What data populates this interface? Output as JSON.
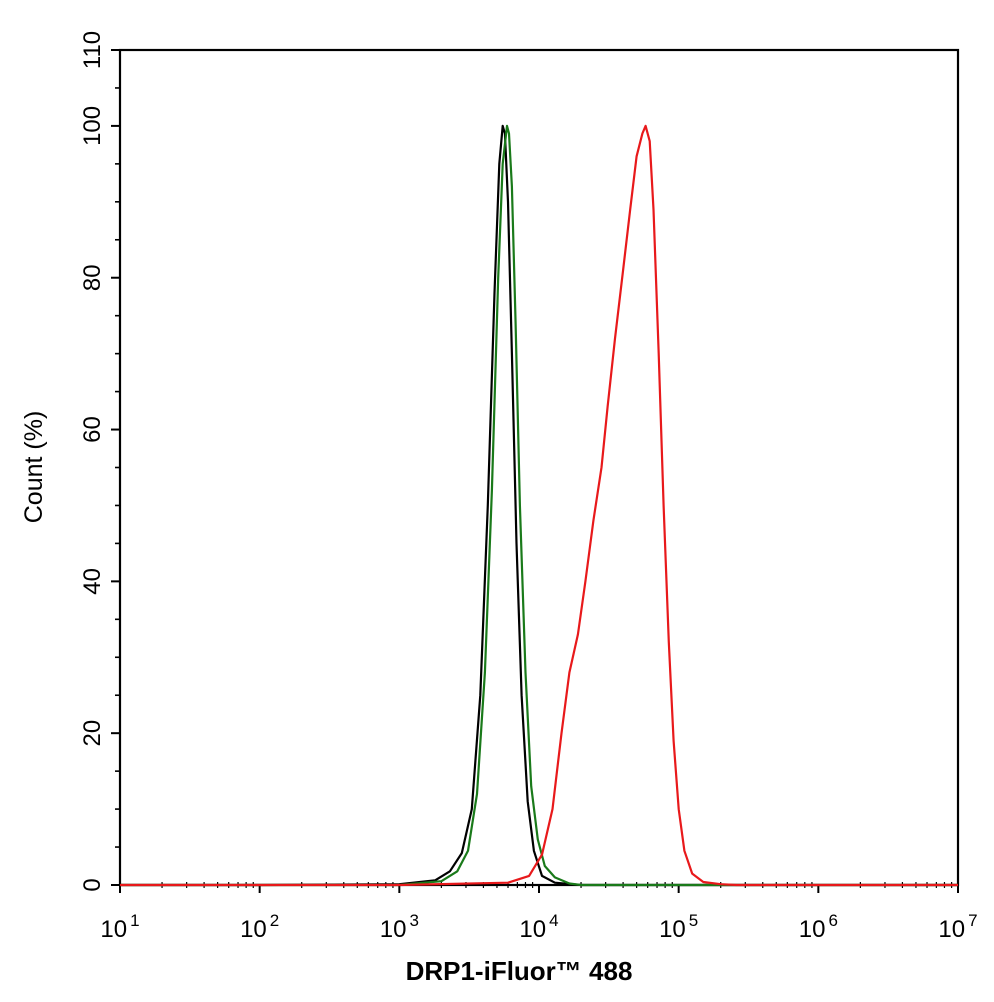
{
  "chart_data": {
    "type": "line",
    "title": "",
    "xlabel": "DRP1-iFluor™ 488",
    "ylabel": "Count  (%)",
    "x_scale": "log",
    "xlim": [
      10,
      10000000
    ],
    "ylim": [
      0,
      110
    ],
    "x_ticks": [
      {
        "base": "10",
        "exp": "1",
        "value": 10
      },
      {
        "base": "10",
        "exp": "2",
        "value": 100
      },
      {
        "base": "10",
        "exp": "3",
        "value": 1000
      },
      {
        "base": "10",
        "exp": "4",
        "value": 10000
      },
      {
        "base": "10",
        "exp": "5",
        "value": 100000
      },
      {
        "base": "10",
        "exp": "6",
        "value": 1000000
      },
      {
        "base": "10",
        "exp": "7",
        "value": 10000000
      }
    ],
    "y_ticks": [
      "0",
      "20",
      "40",
      "60",
      "80",
      "100",
      "110"
    ],
    "grid": false,
    "legend": "none",
    "series": [
      {
        "color": "#000000",
        "x": [
          10,
          100,
          1000,
          1800,
          2300,
          2800,
          3300,
          3800,
          4300,
          4800,
          5200,
          5500,
          5700,
          6000,
          6400,
          6900,
          7500,
          8300,
          9200,
          10500,
          13000,
          20000,
          10000000
        ],
        "y": [
          0,
          0,
          0.1,
          0.6,
          1.8,
          4.2,
          10,
          25,
          50,
          78,
          95,
          100,
          99,
          90,
          70,
          45,
          25,
          11,
          4.5,
          1.2,
          0.3,
          0,
          0
        ]
      },
      {
        "color": "#1a7a1a",
        "x": [
          10,
          100,
          1000,
          2000,
          2600,
          3100,
          3600,
          4100,
          4600,
          5100,
          5500,
          5900,
          6100,
          6400,
          6800,
          7300,
          8000,
          8800,
          9800,
          11000,
          13000,
          16500,
          20000,
          10000000
        ],
        "y": [
          0,
          0,
          0,
          0.5,
          1.8,
          4.5,
          12,
          28,
          52,
          80,
          95,
          100,
          99,
          92,
          74,
          50,
          28,
          13,
          6,
          2.5,
          1,
          0.2,
          0,
          0
        ]
      },
      {
        "color": "#e8191b",
        "x": [
          10,
          100,
          1000,
          6000,
          8500,
          10500,
          12500,
          14500,
          16500,
          19000,
          21500,
          24500,
          28000,
          31000,
          35000,
          40000,
          45000,
          50000,
          55000,
          58000,
          62000,
          66000,
          72000,
          78000,
          85000,
          92000,
          100000,
          110000,
          125000,
          150000,
          200000,
          260000,
          10000000
        ],
        "y": [
          0,
          0,
          0,
          0.3,
          1.2,
          4,
          10,
          20,
          28,
          33,
          40,
          48,
          55,
          63,
          72,
          81,
          89,
          96,
          99,
          100,
          98,
          89,
          70,
          50,
          32,
          19,
          10,
          4.5,
          1.5,
          0.4,
          0.1,
          0,
          0
        ]
      }
    ]
  }
}
